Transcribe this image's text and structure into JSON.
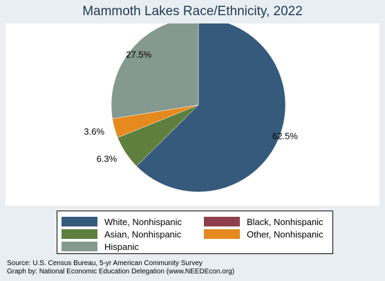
{
  "chart_data": {
    "type": "pie",
    "title": "Mammoth Lakes Race/Ethnicity, 2022",
    "slices": [
      {
        "label": "White, Nonhispanic",
        "value": 62.5,
        "display": "62.5%",
        "color": "#355a7c"
      },
      {
        "label": "Black, Nonhispanic",
        "value": 0,
        "display": "",
        "color": "#8f3f4a"
      },
      {
        "label": "Asian, Nonhispanic",
        "value": 6.3,
        "display": "6.3%",
        "color": "#5e7f3d"
      },
      {
        "label": "Other, Nonhispanic",
        "value": 3.6,
        "display": "3.6%",
        "color": "#e48a1e"
      },
      {
        "label": "Hispanic",
        "value": 27.5,
        "display": "27.5%",
        "color": "#84998f"
      }
    ],
    "legend": {
      "placement": "bottom",
      "entries": [
        {
          "label": "White, Nonhispanic",
          "color": "#355a7c"
        },
        {
          "label": "Black, Nonhispanic",
          "color": "#8f3f4a"
        },
        {
          "label": "Asian, Nonhispanic",
          "color": "#5e7f3d"
        },
        {
          "label": "Other, Nonhispanic",
          "color": "#e48a1e"
        },
        {
          "label": "Hispanic",
          "color": "#84998f"
        }
      ]
    }
  },
  "source": {
    "line1": "Source:  U.S. Census Bureau, 5-yr American Community Survey",
    "line2": "Graph by: National Economic Education Delegation (www.NEEDEcon.org)"
  },
  "colors": {
    "background": "#e8eef2",
    "plot_background": "#ffffff",
    "title": "#1f3a52"
  }
}
